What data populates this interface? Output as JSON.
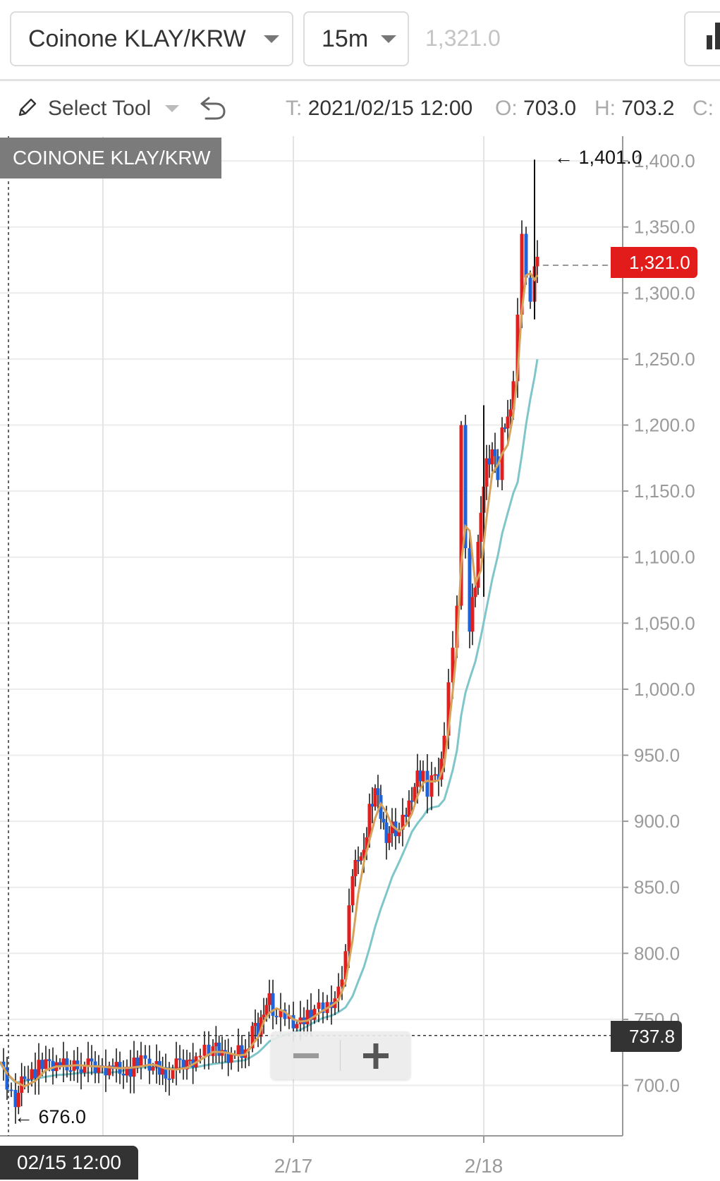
{
  "header": {
    "pair_selector": "Coinone KLAY/KRW",
    "interval_selector": "15m",
    "last_price": "1,321.0"
  },
  "toolbar": {
    "tool_label": "Select Tool",
    "ohlc": {
      "t_key": "T:",
      "t_val": "2021/02/15 12:00",
      "o_key": "O:",
      "o_val": "703.0",
      "h_key": "H:",
      "h_val": "703.2",
      "c_key": "C:"
    }
  },
  "chart_data": {
    "type": "candlestick",
    "title": "COINONE KLAY/KRW",
    "ylim": [
      660,
      1410
    ],
    "y_ticks": [
      "1,400.0",
      "1,350.0",
      "1,300.0",
      "1,250.0",
      "1,200.0",
      "1,150.0",
      "1,100.0",
      "1,050.0",
      "1,000.0",
      "950.0",
      "900.0",
      "850.0",
      "800.0",
      "750.0",
      "700.0"
    ],
    "x_ticks": [
      "2/17",
      "2/18"
    ],
    "crosshair_time": "02/15 12:00",
    "crosshair_price": "737.8",
    "current_price": "1,321.0",
    "max_label": "← 1,401.0",
    "min_label": "← 676.0",
    "up_color": "#e0201e",
    "down_color": "#1f63d8",
    "ma_fast_color": "#d6a15a",
    "ma_slow_color": "#7fc6cb",
    "close_path": [
      [
        0,
        718
      ],
      [
        10,
        700
      ],
      [
        22,
        690
      ],
      [
        35,
        708
      ],
      [
        50,
        712
      ],
      [
        65,
        715
      ],
      [
        80,
        716
      ],
      [
        95,
        713
      ],
      [
        110,
        717
      ],
      [
        125,
        714
      ],
      [
        140,
        712
      ],
      [
        155,
        715
      ],
      [
        170,
        712
      ],
      [
        185,
        713
      ],
      [
        200,
        718
      ],
      [
        212,
        716
      ],
      [
        222,
        712
      ],
      [
        235,
        710
      ],
      [
        250,
        714
      ],
      [
        265,
        716
      ],
      [
        278,
        722
      ],
      [
        290,
        726
      ],
      [
        302,
        728
      ],
      [
        315,
        722
      ],
      [
        328,
        722
      ],
      [
        338,
        724
      ],
      [
        348,
        724
      ],
      [
        358,
        745
      ],
      [
        366,
        740
      ],
      [
        374,
        760
      ],
      [
        382,
        765
      ],
      [
        392,
        750
      ],
      [
        404,
        752
      ],
      [
        416,
        748
      ],
      [
        426,
        745
      ],
      [
        436,
        754
      ],
      [
        446,
        758
      ],
      [
        458,
        758
      ],
      [
        470,
        765
      ],
      [
        480,
        770
      ],
      [
        490,
        800
      ],
      [
        500,
        860
      ],
      [
        508,
        875
      ],
      [
        516,
        872
      ],
      [
        524,
        910
      ],
      [
        532,
        925
      ],
      [
        540,
        905
      ],
      [
        548,
        890
      ],
      [
        556,
        895
      ],
      [
        566,
        892
      ],
      [
        576,
        905
      ],
      [
        584,
        920
      ],
      [
        592,
        932
      ],
      [
        600,
        935
      ],
      [
        606,
        925
      ],
      [
        612,
        930
      ],
      [
        622,
        938
      ],
      [
        630,
        960
      ],
      [
        636,
        1010
      ],
      [
        642,
        1025
      ],
      [
        648,
        1060
      ],
      [
        654,
        1200
      ],
      [
        660,
        1110
      ],
      [
        666,
        1050
      ],
      [
        674,
        1080
      ],
      [
        682,
        1140
      ],
      [
        690,
        1170
      ],
      [
        698,
        1180
      ],
      [
        706,
        1160
      ],
      [
        712,
        1195
      ],
      [
        720,
        1200
      ],
      [
        728,
        1230
      ],
      [
        734,
        1290
      ],
      [
        740,
        1340
      ],
      [
        746,
        1310
      ],
      [
        752,
        1295
      ],
      [
        758,
        1325
      ],
      [
        762,
        1321
      ]
    ]
  },
  "zoom": {
    "minus": "−",
    "plus": "+"
  }
}
